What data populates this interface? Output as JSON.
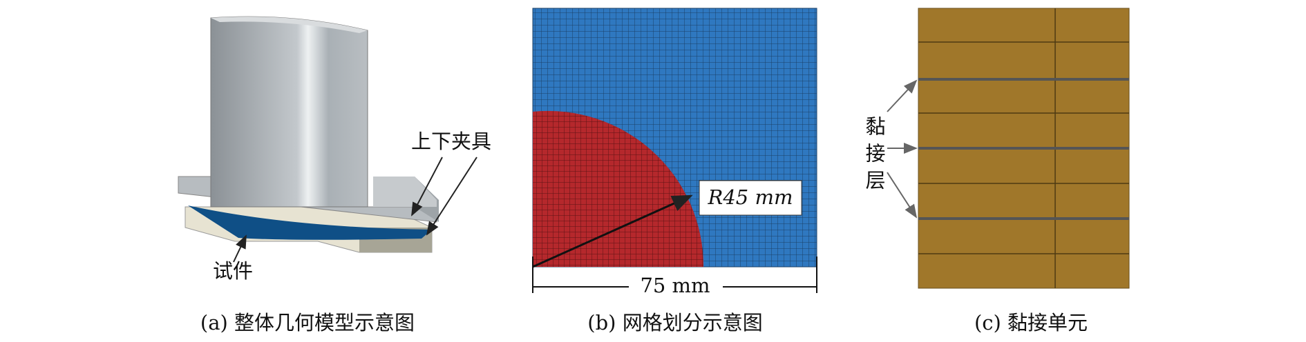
{
  "panel_a": {
    "fixture_label": "上下夹具",
    "specimen_label": "试件",
    "caption": "(a) 整体几何模型示意图"
  },
  "panel_b": {
    "radius_label": "R45 mm",
    "width_label": "75 mm",
    "caption": "(b) 网格划分示意图"
  },
  "panel_c": {
    "layer_label": "黏接层",
    "caption": "(c) 黏接单元"
  }
}
